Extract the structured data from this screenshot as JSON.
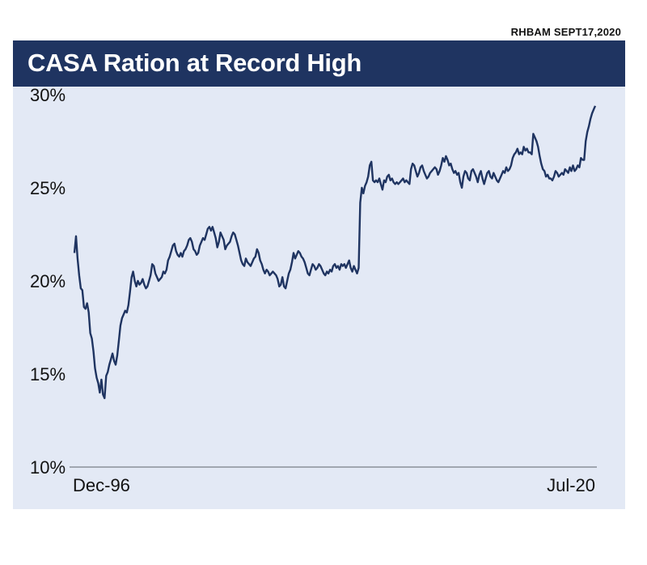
{
  "source_note": "RHBAM SEPT17,2020",
  "colors": {
    "title_bar": "#1f3461",
    "panel": "#e3e9f5",
    "line": "#1f3461",
    "axis": "#8a8f99"
  },
  "chart_data": {
    "type": "line",
    "title": "CASA Ration at Record High",
    "xlabel": "",
    "ylabel": "",
    "y_ticks": [
      "10%",
      "15%",
      "20%",
      "25%",
      "30%"
    ],
    "y_tick_values": [
      10,
      15,
      20,
      25,
      30
    ],
    "ylim": [
      10,
      30
    ],
    "x_tick_labels": [
      "Dec-96",
      "Jul-20"
    ],
    "x_range": [
      "Dec-96",
      "Jul-20"
    ],
    "grid": false,
    "series": [
      {
        "values": [
          21.5,
          22.4,
          21.2,
          20.3,
          19.6,
          19.5,
          18.6,
          18.5,
          18.8,
          18.3,
          17.2,
          16.9,
          16.2,
          15.3,
          14.8,
          14.5,
          14.0,
          14.7,
          13.9,
          13.7,
          14.9,
          15.1,
          15.5,
          15.8,
          16.1,
          15.7,
          15.5,
          16.0,
          16.8,
          17.6,
          18.0,
          18.2,
          18.4,
          18.3,
          18.7,
          19.4,
          20.2,
          20.5,
          20.0,
          19.7,
          20.0,
          19.8,
          19.9,
          20.1,
          19.8,
          19.6,
          19.7,
          20.0,
          20.3,
          20.9,
          20.8,
          20.4,
          20.2,
          20.0,
          20.1,
          20.2,
          20.5,
          20.4,
          20.6,
          21.1,
          21.3,
          21.6,
          21.9,
          22.0,
          21.6,
          21.4,
          21.3,
          21.5,
          21.3,
          21.6,
          21.7,
          21.9,
          22.2,
          22.3,
          22.1,
          21.7,
          21.6,
          21.4,
          21.5,
          21.9,
          22.1,
          22.3,
          22.2,
          22.5,
          22.8,
          22.9,
          22.7,
          22.9,
          22.6,
          22.3,
          21.8,
          22.1,
          22.6,
          22.4,
          22.2,
          21.7,
          21.9,
          22.0,
          22.1,
          22.4,
          22.6,
          22.5,
          22.2,
          21.9,
          21.5,
          21.1,
          20.9,
          20.8,
          21.2,
          21.0,
          20.9,
          20.8,
          21.0,
          21.2,
          21.3,
          21.7,
          21.5,
          21.1,
          20.9,
          20.6,
          20.4,
          20.6,
          20.5,
          20.3,
          20.4,
          20.5,
          20.4,
          20.3,
          20.1,
          19.7,
          19.8,
          20.2,
          19.7,
          19.6,
          20.0,
          20.4,
          20.6,
          21.0,
          21.5,
          21.2,
          21.4,
          21.6,
          21.5,
          21.3,
          21.2,
          21.0,
          20.7,
          20.4,
          20.3,
          20.6,
          20.9,
          20.8,
          20.6,
          20.7,
          20.9,
          20.8,
          20.6,
          20.4,
          20.3,
          20.5,
          20.4,
          20.6,
          20.5,
          20.8,
          20.9,
          20.7,
          20.8,
          20.6,
          20.9,
          20.8,
          20.9,
          20.7,
          20.9,
          21.1,
          20.7,
          20.5,
          20.8,
          20.6,
          20.4,
          20.7,
          24.2,
          25.0,
          24.7,
          25.1,
          25.3,
          25.6,
          26.2,
          26.4,
          25.4,
          25.3,
          25.4,
          25.3,
          25.5,
          25.2,
          24.9,
          25.4,
          25.3,
          25.6,
          25.7,
          25.4,
          25.5,
          25.3,
          25.2,
          25.3,
          25.2,
          25.3,
          25.4,
          25.5,
          25.3,
          25.4,
          25.3,
          25.2,
          26.0,
          26.3,
          26.2,
          25.9,
          25.6,
          25.8,
          26.1,
          26.2,
          25.9,
          25.7,
          25.5,
          25.6,
          25.8,
          25.9,
          26.0,
          26.1,
          26.0,
          25.7,
          25.9,
          26.2,
          26.6,
          26.4,
          26.7,
          26.5,
          26.2,
          26.3,
          26.0,
          25.8,
          25.9,
          25.7,
          25.8,
          25.3,
          25.0,
          25.6,
          25.9,
          25.8,
          25.5,
          25.4,
          25.9,
          26.0,
          25.8,
          25.6,
          25.3,
          25.7,
          25.9,
          25.5,
          25.2,
          25.5,
          25.8,
          25.9,
          25.6,
          25.5,
          25.8,
          25.6,
          25.4,
          25.3,
          25.5,
          25.7,
          25.9,
          25.8,
          26.1,
          25.9,
          26.0,
          26.2,
          26.6,
          26.8,
          26.9,
          27.1,
          26.8,
          26.9,
          26.8,
          27.2,
          27.0,
          27.1,
          26.9,
          26.9,
          26.8,
          27.9,
          27.7,
          27.5,
          27.2,
          26.7,
          26.3,
          26.0,
          25.9,
          25.6,
          25.7,
          25.5,
          25.5,
          25.4,
          25.6,
          25.9,
          25.8,
          25.6,
          25.7,
          25.8,
          25.7,
          26.0,
          25.9,
          25.8,
          26.1,
          25.9,
          26.2,
          25.9,
          26.0,
          26.2,
          26.1,
          26.6,
          26.5,
          26.5,
          27.5,
          28.0,
          28.3,
          28.7,
          29.0,
          29.2,
          29.4
        ]
      }
    ]
  }
}
